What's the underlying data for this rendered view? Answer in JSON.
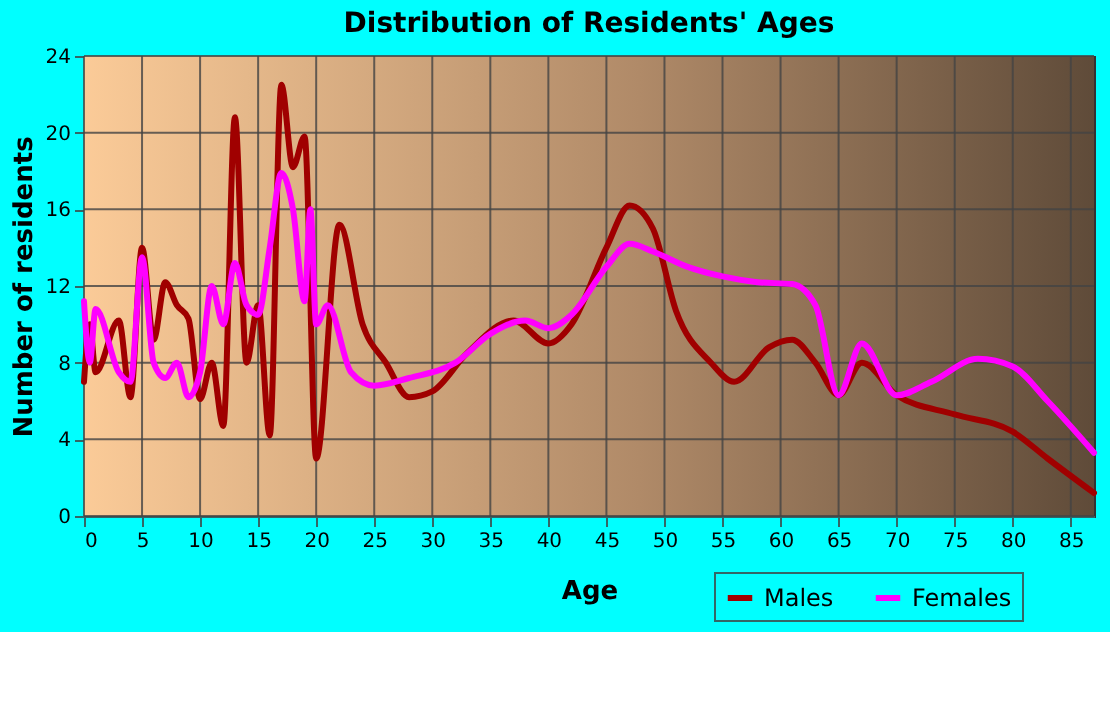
{
  "chart_data": {
    "type": "line",
    "title": "Distribution of Residents' Ages",
    "xlabel": "Age",
    "ylabel": "Number of residents",
    "xlim": [
      0,
      87
    ],
    "xticks": [
      0,
      5,
      10,
      15,
      20,
      25,
      30,
      35,
      40,
      45,
      50,
      55,
      60,
      65,
      70,
      75,
      80,
      85
    ],
    "ylim": [
      0,
      24
    ],
    "yticks": [
      0,
      4,
      8,
      12,
      16,
      20,
      24
    ],
    "grid": true,
    "legend": "bottom right",
    "marker": "none",
    "line_style": "solid",
    "series": [
      {
        "name": "Males",
        "color": "#a00000",
        "x": [
          0,
          0.5,
          1,
          3,
          4,
          5,
          6,
          7,
          8,
          9,
          10,
          11,
          12,
          13,
          14,
          15,
          16,
          17,
          18,
          19,
          20,
          22,
          24,
          26,
          28,
          30,
          33,
          37,
          40,
          42,
          45,
          47,
          49,
          51,
          54,
          56,
          59,
          61,
          63,
          65,
          67,
          70,
          75,
          80,
          83,
          87
        ],
        "values": [
          7,
          10,
          7.5,
          10.2,
          6.2,
          14,
          9.2,
          12.2,
          11,
          10.3,
          6.1,
          8,
          4.7,
          20.8,
          8,
          11,
          4.2,
          22.5,
          18.2,
          19.8,
          3,
          15.2,
          10,
          8,
          6.2,
          6.5,
          8.5,
          10.2,
          9,
          10,
          14,
          16.2,
          15,
          10.7,
          8,
          7,
          8.8,
          9.2,
          8,
          6.3,
          8,
          6.3,
          5.3,
          4.4,
          3,
          1.2
        ]
      },
      {
        "name": "Females",
        "color": "#ff00ff",
        "x": [
          0,
          0.5,
          1,
          3,
          4,
          5,
          6,
          7,
          8,
          9,
          10,
          11,
          12,
          13,
          14,
          15,
          16,
          17,
          18,
          19,
          19.5,
          20,
          21,
          23,
          25,
          28,
          32,
          35,
          38,
          40,
          42,
          45,
          47,
          49,
          52,
          55,
          58,
          61,
          63,
          65,
          67,
          70,
          73,
          77,
          80,
          83,
          87
        ],
        "values": [
          11.2,
          8,
          10.8,
          7.5,
          7,
          13.5,
          8,
          7.2,
          8,
          6.2,
          7.5,
          12,
          10,
          13.2,
          11,
          10.5,
          14,
          17.9,
          16,
          11.2,
          16,
          10,
          11,
          7.5,
          6.8,
          7.2,
          8,
          9.5,
          10.2,
          9.8,
          10.5,
          13,
          14.2,
          13.8,
          13,
          12.5,
          12.2,
          12.1,
          11,
          6.3,
          9,
          6.3,
          7,
          8.2,
          7.8,
          6,
          3.3
        ]
      }
    ]
  }
}
